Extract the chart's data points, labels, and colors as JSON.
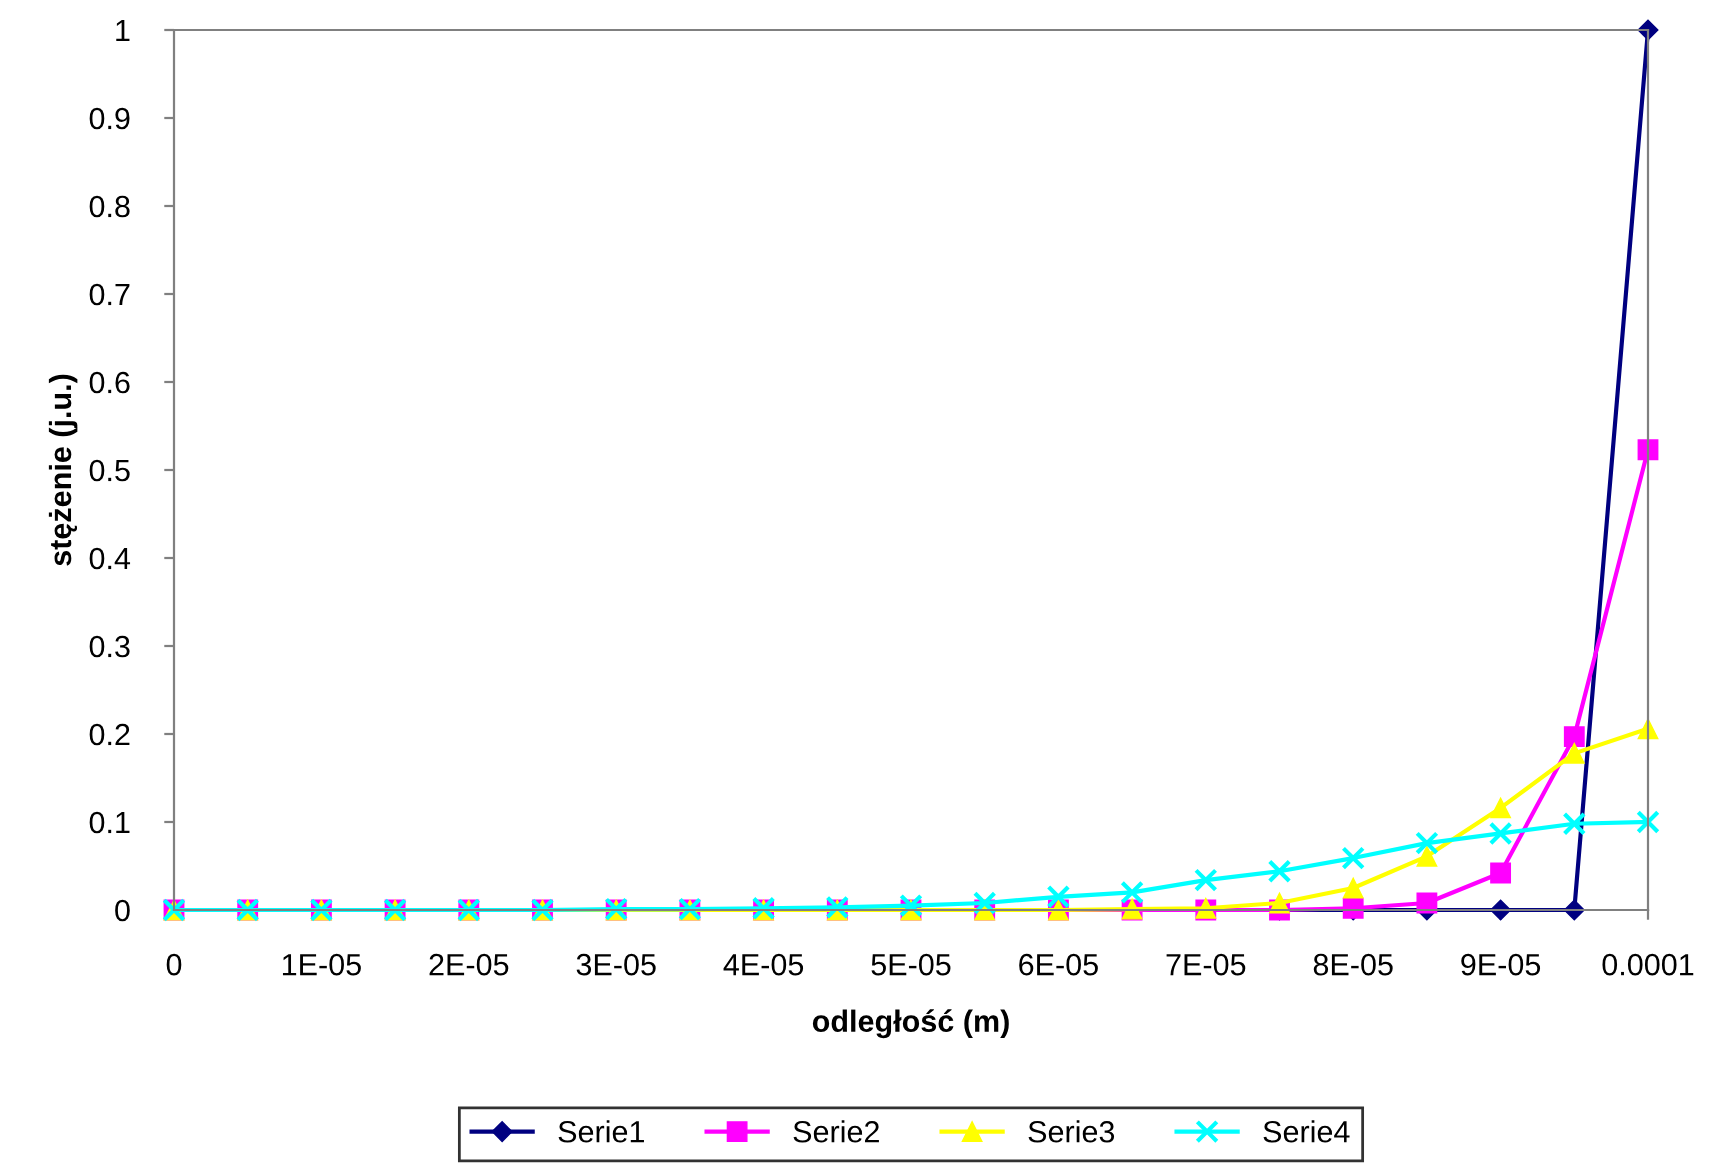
{
  "chart_data": {
    "type": "line",
    "xlabel": "odległość (m)",
    "ylabel": "stężenie (j.u.)",
    "x": [
      0,
      5e-06,
      1e-05,
      1.5e-05,
      2e-05,
      2.5e-05,
      3e-05,
      3.5e-05,
      4e-05,
      4.5e-05,
      5e-05,
      5.5e-05,
      6e-05,
      6.5e-05,
      7e-05,
      7.5e-05,
      8e-05,
      8.5e-05,
      9e-05,
      9.5e-05,
      0.0001
    ],
    "series": [
      {
        "name": "Serie1",
        "color": "#000080",
        "marker": "diamond",
        "values": [
          null,
          null,
          null,
          null,
          null,
          null,
          null,
          null,
          null,
          null,
          null,
          null,
          null,
          null,
          null,
          0,
          0,
          0,
          0,
          0,
          1
        ]
      },
      {
        "name": "Serie2",
        "color": "#ff00ff",
        "marker": "square",
        "values": [
          0,
          0,
          0,
          0,
          0,
          0,
          0,
          0,
          0,
          0,
          0,
          0,
          0,
          0,
          0,
          0,
          0.002,
          0.008,
          0.042,
          0.197,
          0.523
        ]
      },
      {
        "name": "Serie3",
        "color": "#ffff00",
        "marker": "triangle",
        "values": [
          0,
          0,
          0,
          0,
          0,
          0,
          0,
          0,
          0,
          0,
          0,
          0,
          0,
          0.001,
          0.002,
          0.008,
          0.025,
          0.061,
          0.116,
          0.178,
          0.206
        ]
      },
      {
        "name": "Serie4",
        "color": "#00ffff",
        "marker": "cross",
        "values": [
          0,
          0,
          0,
          0,
          0,
          0,
          0.001,
          0.001,
          0.002,
          0.003,
          0.005,
          0.008,
          0.015,
          0.02,
          0.034,
          0.044,
          0.059,
          0.076,
          0.087,
          0.098,
          0.1
        ]
      }
    ],
    "xlim": [
      0,
      0.0001
    ],
    "xticks": [
      0,
      {
        "value": 1e-05,
        "label": "1E-05"
      },
      {
        "value": 2e-05,
        "label": "2E-05"
      },
      {
        "value": 3e-05,
        "label": "3E-05"
      },
      {
        "value": 4e-05,
        "label": "4E-05"
      },
      {
        "value": 5e-05,
        "label": "5E-05"
      },
      {
        "value": 6e-05,
        "label": "6E-05"
      },
      {
        "value": 7e-05,
        "label": "7E-05"
      },
      {
        "value": 8e-05,
        "label": "8E-05"
      },
      {
        "value": 9e-05,
        "label": "9E-05"
      },
      0.0001
    ],
    "ylim": [
      0,
      1
    ],
    "yticks": [
      0,
      0.1,
      0.2,
      0.3,
      0.4,
      0.5,
      0.6,
      0.7,
      0.8,
      0.9,
      1
    ],
    "grid": false,
    "legend": "bottom",
    "line_style": "solid"
  }
}
